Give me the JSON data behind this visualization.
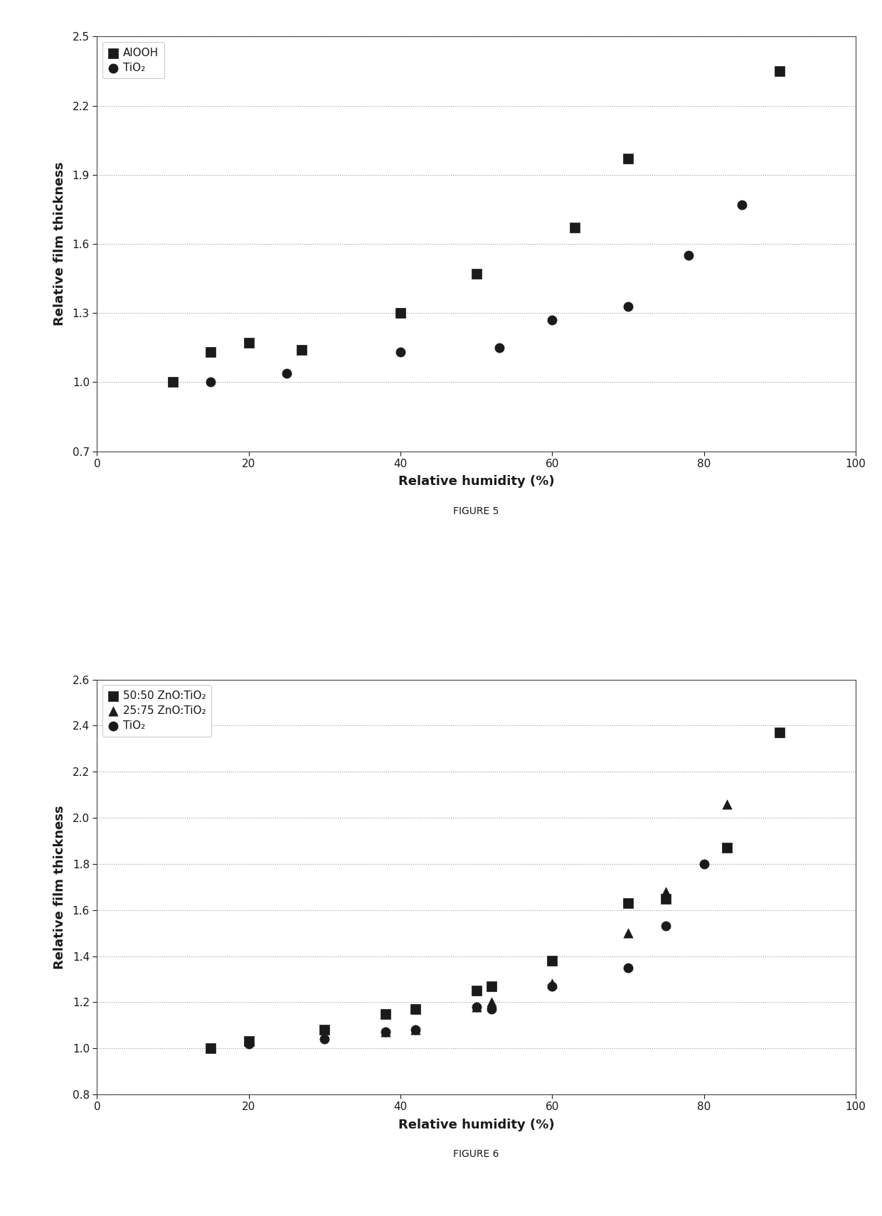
{
  "fig5": {
    "title": "FIGURE 5",
    "xlabel": "Relative humidity (%)",
    "ylabel": "Relative film thickness",
    "xlim": [
      0,
      100
    ],
    "ylim": [
      0.7,
      2.5
    ],
    "yticks": [
      0.7,
      1.0,
      1.3,
      1.6,
      1.9,
      2.2,
      2.5
    ],
    "xticks": [
      0,
      20,
      40,
      60,
      80,
      100
    ],
    "series": [
      {
        "label": "AlOOH",
        "marker": "s",
        "color": "#1a1a1a",
        "x": [
          10,
          15,
          20,
          27,
          40,
          50,
          63,
          70,
          90
        ],
        "y": [
          1.0,
          1.13,
          1.17,
          1.14,
          1.3,
          1.47,
          1.67,
          1.97,
          2.35
        ]
      },
      {
        "label": "TiO₂",
        "marker": "o",
        "color": "#1a1a1a",
        "x": [
          15,
          25,
          40,
          53,
          60,
          70,
          78,
          85,
          90
        ],
        "y": [
          1.0,
          1.04,
          1.13,
          1.15,
          1.27,
          1.33,
          1.55,
          1.77,
          2.35
        ]
      }
    ]
  },
  "fig6": {
    "title": "FIGURE 6",
    "xlabel": "Relative humidity (%)",
    "ylabel": "Relative film thickness",
    "xlim": [
      0,
      100
    ],
    "ylim": [
      0.8,
      2.6
    ],
    "yticks": [
      0.8,
      1.0,
      1.2,
      1.4,
      1.6,
      1.8,
      2.0,
      2.2,
      2.4,
      2.6
    ],
    "xticks": [
      0,
      20,
      40,
      60,
      80,
      100
    ],
    "series": [
      {
        "label": "50:50 ZnO:TiO₂",
        "marker": "s",
        "color": "#1a1a1a",
        "x": [
          15,
          20,
          30,
          38,
          42,
          50,
          52,
          60,
          70,
          75,
          83,
          90
        ],
        "y": [
          1.0,
          1.03,
          1.08,
          1.15,
          1.17,
          1.25,
          1.27,
          1.38,
          1.63,
          1.65,
          1.87,
          2.37
        ]
      },
      {
        "label": "25:75 ZnO:TiO₂",
        "marker": "^",
        "color": "#1a1a1a",
        "x": [
          38,
          42,
          50,
          52,
          60,
          70,
          75,
          83
        ],
        "y": [
          1.07,
          1.08,
          1.18,
          1.2,
          1.28,
          1.5,
          1.68,
          2.06
        ]
      },
      {
        "label": "TiO₂",
        "marker": "o",
        "color": "#1a1a1a",
        "x": [
          20,
          30,
          38,
          42,
          50,
          52,
          60,
          70,
          75,
          80,
          90
        ],
        "y": [
          1.02,
          1.04,
          1.07,
          1.08,
          1.18,
          1.17,
          1.27,
          1.35,
          1.53,
          1.8,
          2.37
        ]
      }
    ]
  },
  "background_color": "#ffffff",
  "grid_color": "#999999",
  "text_color": "#1a1a1a",
  "marker_size": 90,
  "figure_label_fontsize": 10,
  "axis_label_fontsize": 13,
  "tick_fontsize": 11,
  "legend_fontsize": 11
}
